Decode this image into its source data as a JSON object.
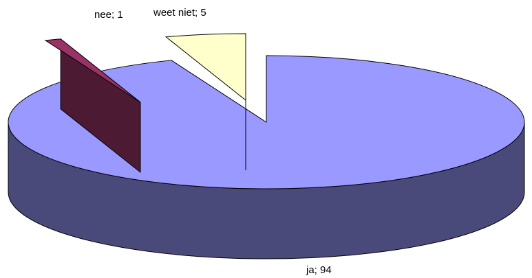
{
  "chart_data": {
    "type": "pie",
    "style": "3d-exploded",
    "categories": [
      "ja",
      "nee",
      "weet niet"
    ],
    "values": [
      94,
      1,
      5
    ],
    "labels": [
      "ja; 94",
      "nee; 1",
      "weet niet; 5"
    ],
    "title": "",
    "legend": "none",
    "colors": {
      "ja": "#9999ff",
      "nee": "#993366",
      "weet niet": "#ffffcc"
    },
    "side_colors": {
      "ja": "#4a4a7a",
      "nee": "#4d1a33",
      "weet niet": "#80806a"
    }
  }
}
